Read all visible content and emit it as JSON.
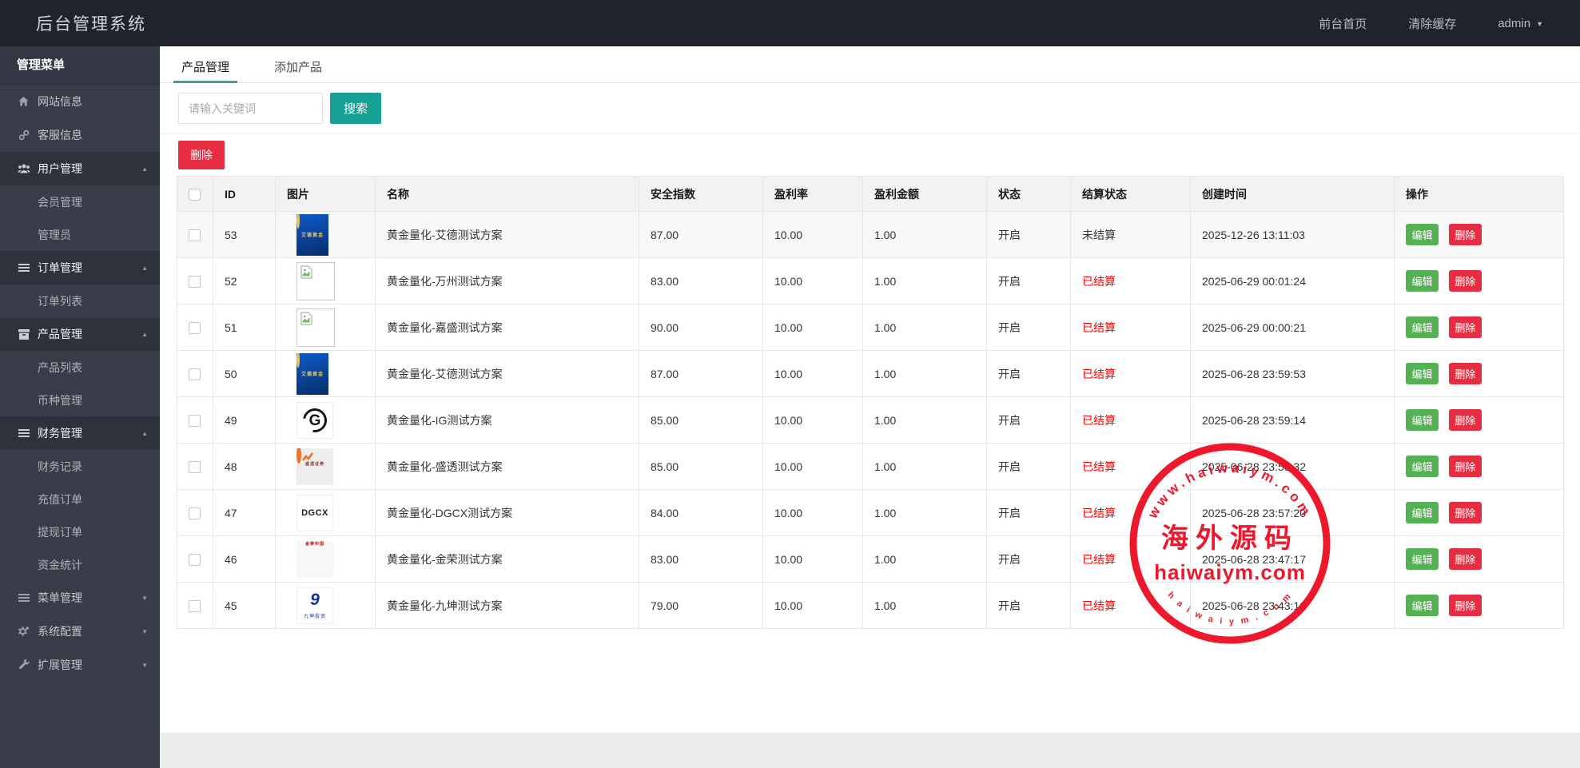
{
  "topbar": {
    "title": "后台管理系统",
    "links": [
      {
        "label": "前台首页"
      },
      {
        "label": "清除缓存"
      }
    ],
    "user": "admin"
  },
  "sidebar": {
    "header": "管理菜单",
    "items": [
      {
        "label": "网站信息"
      },
      {
        "label": "客服信息"
      },
      {
        "label": "用户管理"
      },
      {
        "label": "会员管理"
      },
      {
        "label": "管理员"
      },
      {
        "label": "订单管理"
      },
      {
        "label": "订单列表"
      },
      {
        "label": "产品管理"
      },
      {
        "label": "产品列表"
      },
      {
        "label": "币种管理"
      },
      {
        "label": "财务管理"
      },
      {
        "label": "财务记录"
      },
      {
        "label": "充值订单"
      },
      {
        "label": "提现订单"
      },
      {
        "label": "资金统计"
      },
      {
        "label": "菜单管理"
      },
      {
        "label": "系统配置"
      },
      {
        "label": "扩展管理"
      }
    ]
  },
  "tabs": [
    {
      "label": "产品管理"
    },
    {
      "label": "添加产品"
    }
  ],
  "search": {
    "placeholder": "请输入关键词",
    "button_label": "搜索"
  },
  "toolbar": {
    "delete_label": "删除"
  },
  "table": {
    "columns": [
      "",
      "ID",
      "图片",
      "名称",
      "安全指数",
      "盈利率",
      "盈利金额",
      "状态",
      "结算状态",
      "创建时间",
      "操作"
    ],
    "edit_label": "编辑",
    "delete_label": "删除",
    "rows": [
      {
        "id": "53",
        "img": "aide",
        "img_text": "艾德黄金",
        "name": "黄金量化-艾德测试方案",
        "safety": "87.00",
        "rate": "10.00",
        "amount": "1.00",
        "status": "开启",
        "settle": "未结算",
        "settle_red": false,
        "created": "2025-12-26 13:11:03"
      },
      {
        "id": "52",
        "img": "broken",
        "img_text": "",
        "name": "黄金量化-万州测试方案",
        "safety": "83.00",
        "rate": "10.00",
        "amount": "1.00",
        "status": "开启",
        "settle": "已结算",
        "settle_red": true,
        "created": "2025-06-29 00:01:24"
      },
      {
        "id": "51",
        "img": "broken",
        "img_text": "",
        "name": "黄金量化-嘉盛测试方案",
        "safety": "90.00",
        "rate": "10.00",
        "amount": "1.00",
        "status": "开启",
        "settle": "已结算",
        "settle_red": true,
        "created": "2025-06-29 00:00:21"
      },
      {
        "id": "50",
        "img": "aide",
        "img_text": "艾德黄金",
        "name": "黄金量化-艾德测试方案",
        "safety": "87.00",
        "rate": "10.00",
        "amount": "1.00",
        "status": "开启",
        "settle": "已结算",
        "settle_red": true,
        "created": "2025-06-28 23:59:53"
      },
      {
        "id": "49",
        "img": "ig",
        "img_text": "G",
        "name": "黄金量化-IG测试方案",
        "safety": "85.00",
        "rate": "10.00",
        "amount": "1.00",
        "status": "开启",
        "settle": "已结算",
        "settle_red": true,
        "created": "2025-06-28 23:59:14"
      },
      {
        "id": "48",
        "img": "shengtou",
        "img_text": "盛透证券",
        "name": "黄金量化-盛透测试方案",
        "safety": "85.00",
        "rate": "10.00",
        "amount": "1.00",
        "status": "开启",
        "settle": "已结算",
        "settle_red": true,
        "created": "2025-06-28 23:58:32"
      },
      {
        "id": "47",
        "img": "dgcx",
        "img_text": "DGCX",
        "name": "黄金量化-DGCX测试方案",
        "safety": "84.00",
        "rate": "10.00",
        "amount": "1.00",
        "status": "开启",
        "settle": "已结算",
        "settle_red": true,
        "created": "2025-06-28 23:57:20"
      },
      {
        "id": "46",
        "img": "jinrong",
        "img_text": "金荣中国",
        "name": "黄金量化-金荣测试方案",
        "safety": "83.00",
        "rate": "10.00",
        "amount": "1.00",
        "status": "开启",
        "settle": "已结算",
        "settle_red": true,
        "created": "2025-06-28 23:47:17"
      },
      {
        "id": "45",
        "img": "jiukun",
        "img_text": "9",
        "img_sub": "九坤投资",
        "name": "黄金量化-九坤测试方案",
        "safety": "79.00",
        "rate": "10.00",
        "amount": "1.00",
        "status": "开启",
        "settle": "已结算",
        "settle_red": true,
        "created": "2025-06-28 23:43:16"
      }
    ]
  },
  "watermark": {
    "arc_top": "www.haiwaiym.com",
    "center_cn": "海外源码",
    "center_en": "haiwaiym.com",
    "arc_bottom": "h a i w a i y m . c o m"
  },
  "colors": {
    "teal": "#17a095",
    "green": "#40a572",
    "red": "#e62d41",
    "edit_green": "#54b254",
    "settle_red": "#ff0000",
    "stamp": "#ee0a1f",
    "topbar": "#20232c",
    "side": "#393d49",
    "side_dark": "#2e323c"
  }
}
